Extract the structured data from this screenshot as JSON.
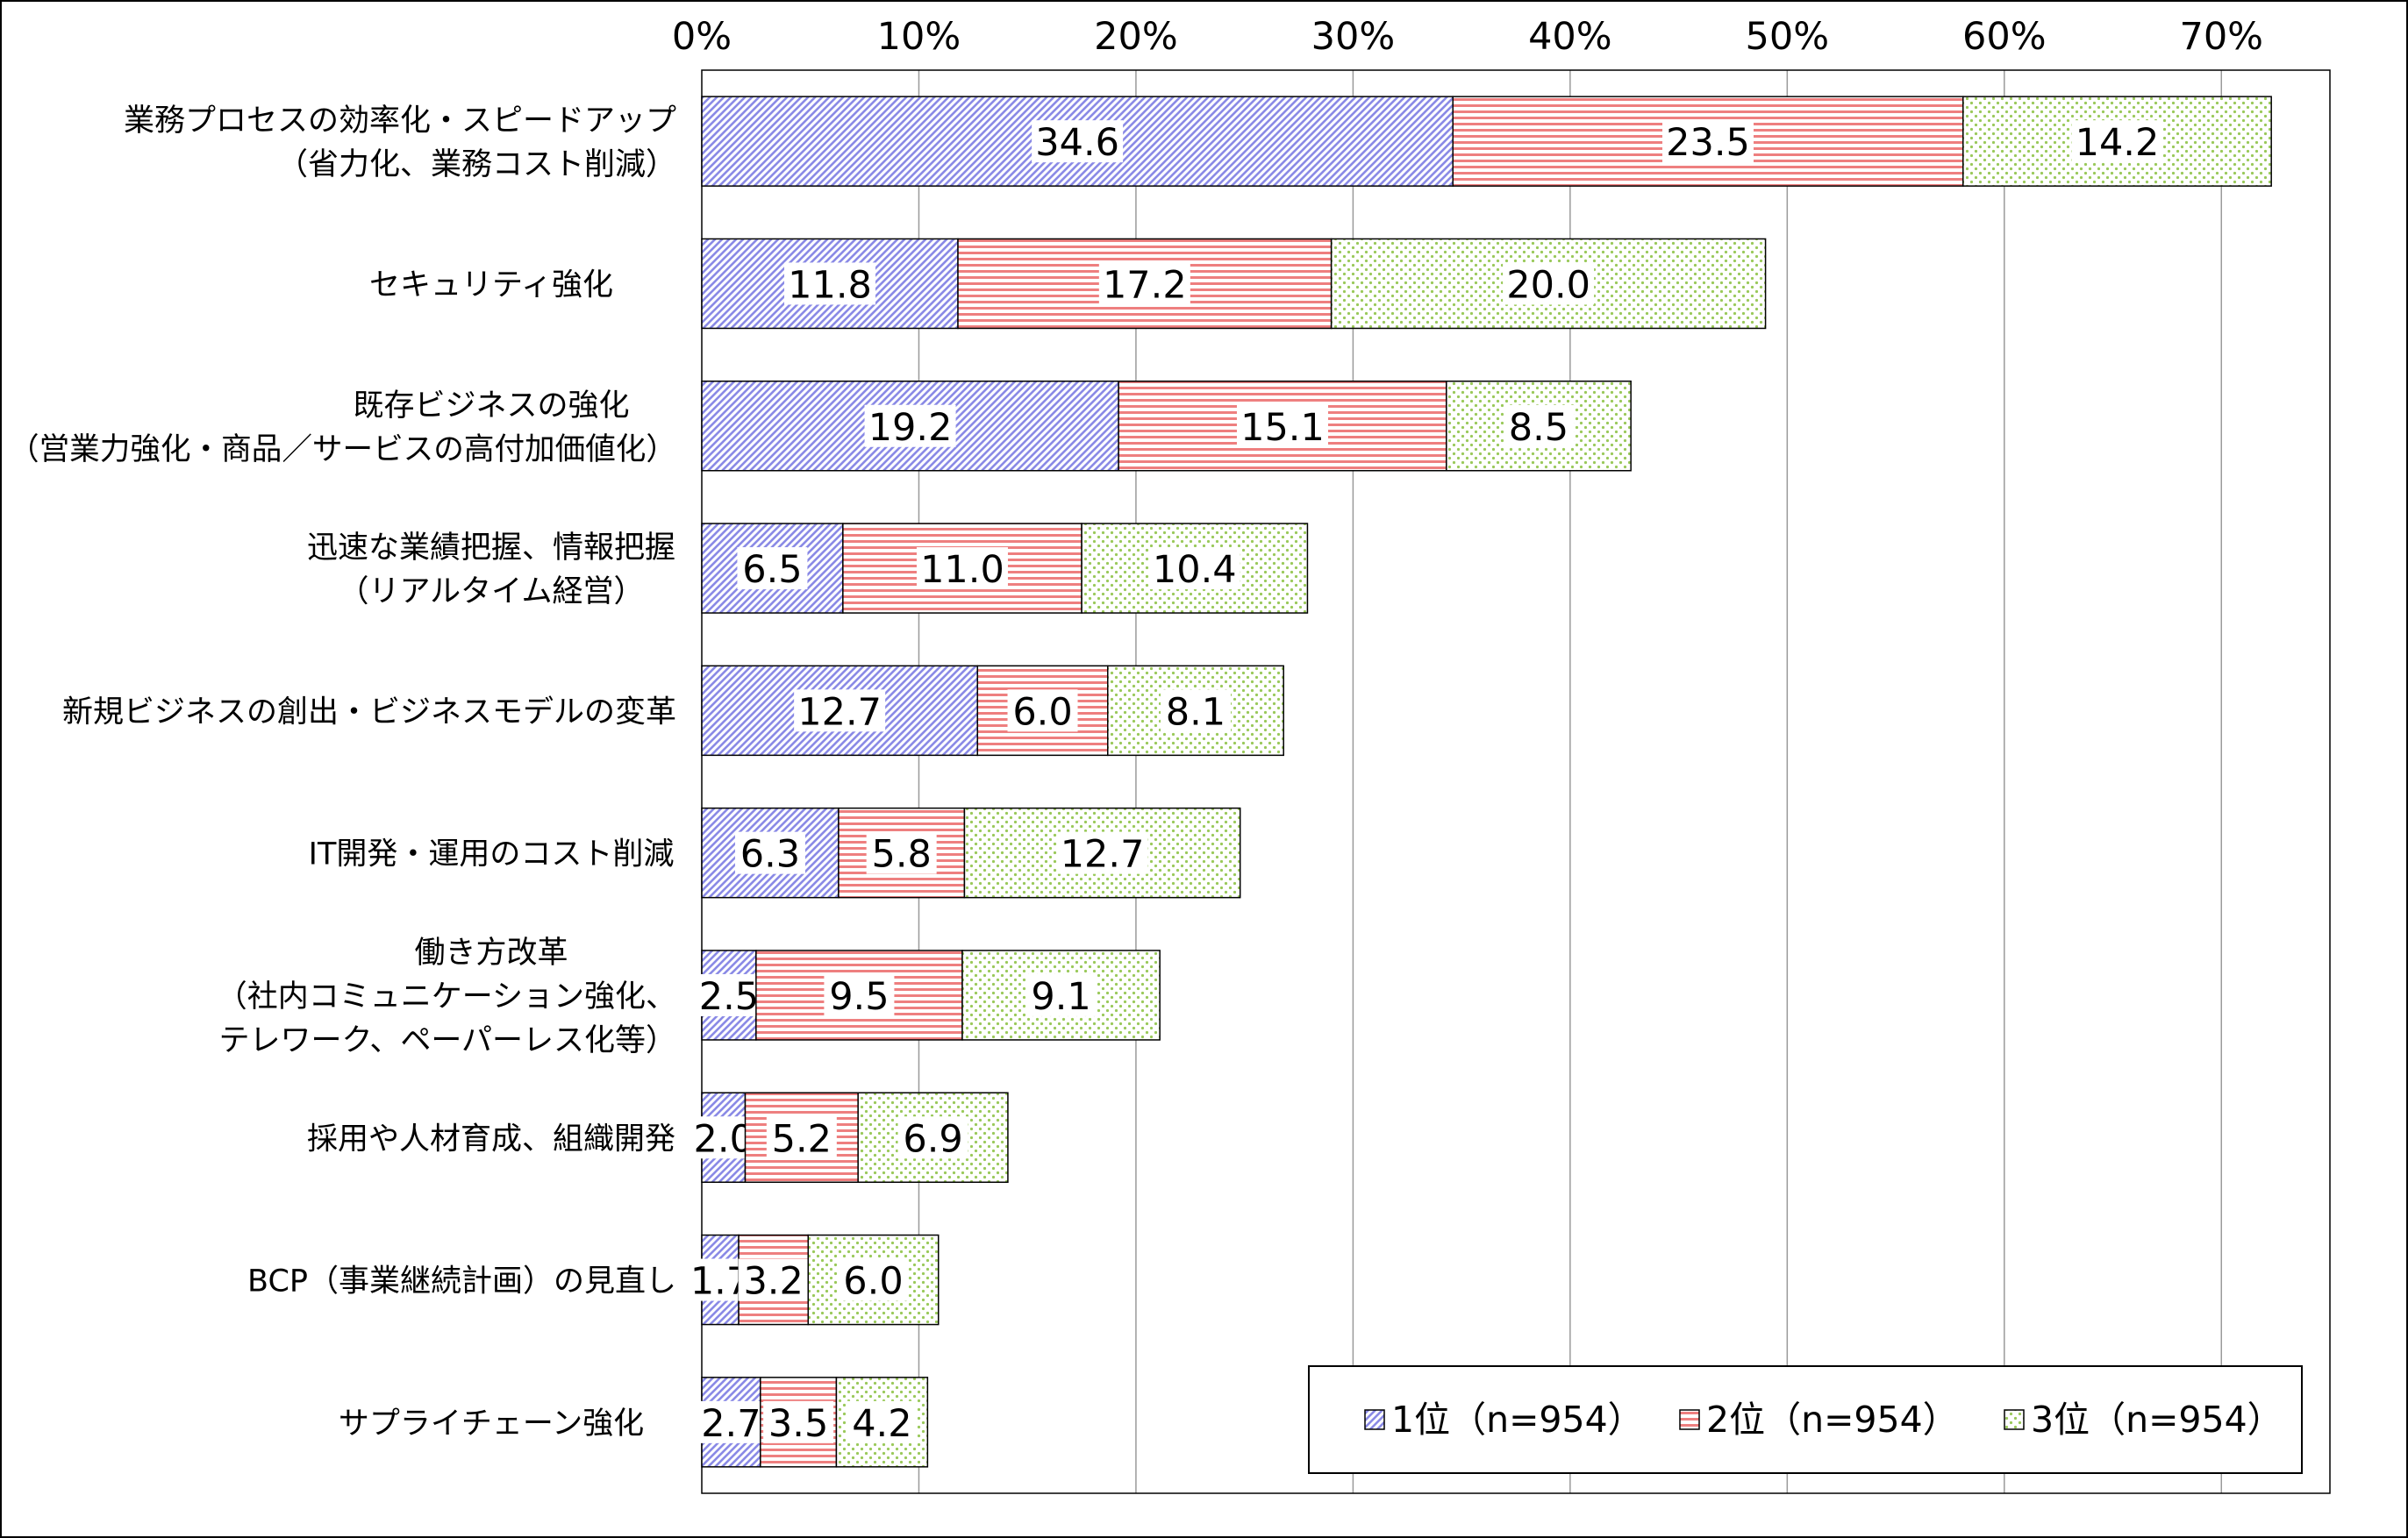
{
  "chart_data": {
    "type": "bar",
    "orientation": "horizontal",
    "stacked": true,
    "xlim": [
      0,
      75
    ],
    "x_ticks": [
      0,
      10,
      20,
      30,
      40,
      50,
      60,
      70
    ],
    "x_tick_labels": [
      "0%",
      "10%",
      "20%",
      "30%",
      "40%",
      "50%",
      "60%",
      "70%"
    ],
    "grid": true,
    "legend_position": "bottom-right",
    "categories": [
      [
        "業務プロセスの効率化・スピードアップ",
        "（省力化、業務コスト削減）"
      ],
      [
        "セキュリティ強化"
      ],
      [
        "既存ビジネスの強化",
        "（営業力強化・商品／サービスの高付加価値化）"
      ],
      [
        "迅速な業績把握、情報把握",
        "（リアルタイム経営）"
      ],
      [
        "新規ビジネスの創出・ビジネスモデルの変革"
      ],
      [
        "IT開発・運用のコスト削減"
      ],
      [
        "働き方改革",
        "（社内コミュニケーション強化、",
        "テレワーク、ペーパーレス化等）"
      ],
      [
        "採用や人材育成、組織開発"
      ],
      [
        "BCP（事業継続計画）の見直し"
      ],
      [
        "サプライチェーン強化"
      ]
    ],
    "series": [
      {
        "name": "1位（n=954）",
        "color": "#8a8ae6",
        "pattern": "diagonal",
        "values": [
          34.6,
          11.8,
          19.2,
          6.5,
          12.7,
          6.3,
          2.5,
          2.0,
          1.7,
          2.7
        ],
        "labels": [
          "34.6",
          "11.8",
          "19.2",
          "6.5",
          "12.7",
          "6.3",
          "2.5",
          "2.0",
          "1.7",
          "2.7"
        ]
      },
      {
        "name": "2位（n=954）",
        "color": "#ee7f7f",
        "pattern": "horizontal",
        "values": [
          23.5,
          17.2,
          15.1,
          11.0,
          6.0,
          5.8,
          9.5,
          5.2,
          3.2,
          3.5
        ],
        "labels": [
          "23.5",
          "17.2",
          "15.1",
          "11.0",
          "6.0",
          "5.8",
          "9.5",
          "5.2",
          "3.2",
          "3.5"
        ]
      },
      {
        "name": "3位（n=954）",
        "color": "#9ac95a",
        "pattern": "dots",
        "values": [
          14.2,
          20.0,
          8.5,
          10.4,
          8.1,
          12.7,
          9.1,
          6.9,
          6.0,
          4.2
        ],
        "labels": [
          "14.2",
          "20.0",
          "8.5",
          "10.4",
          "8.1",
          "12.7",
          "9.1",
          "6.9",
          "6.0",
          "4.2"
        ]
      }
    ]
  }
}
